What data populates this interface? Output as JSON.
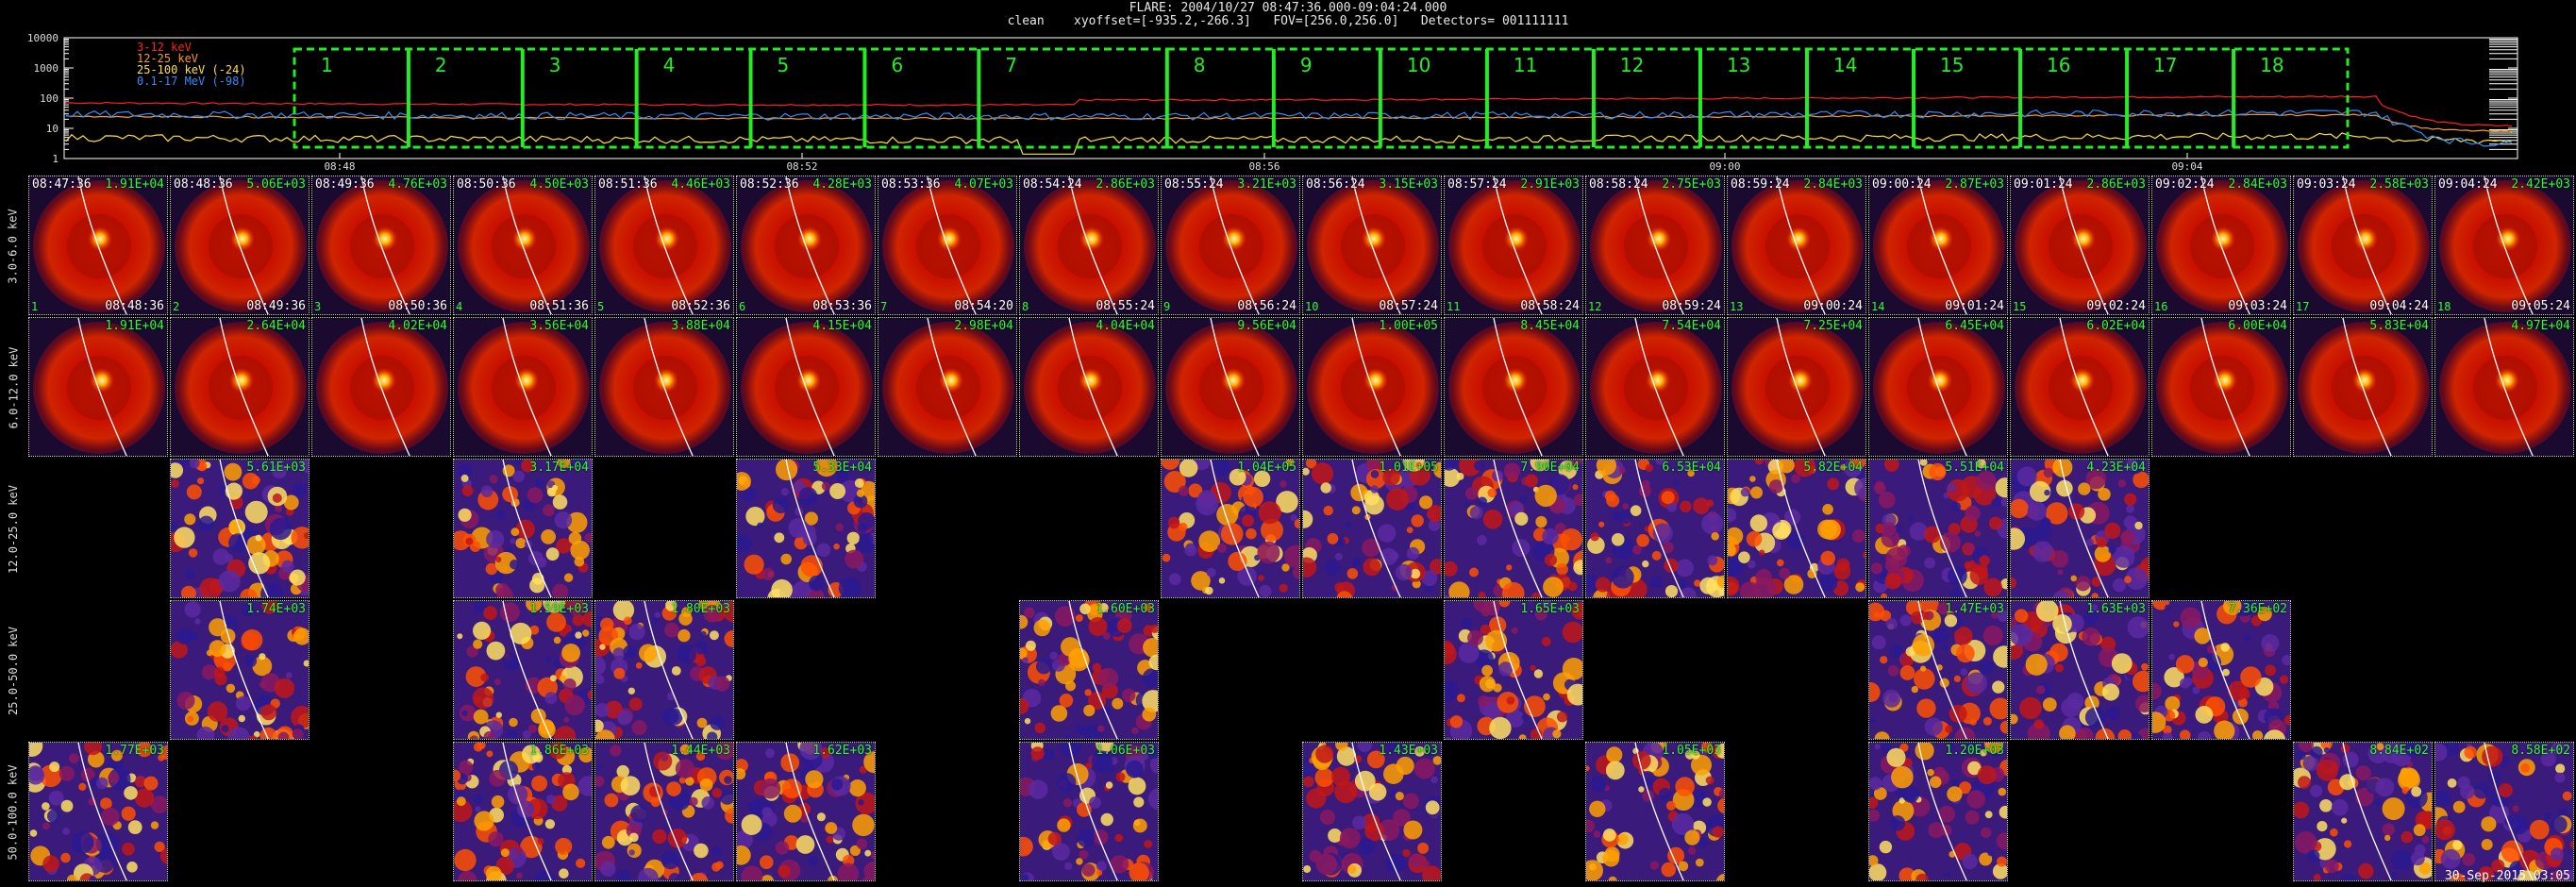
{
  "header": {
    "line1": "FLARE: 2004/10/27 08:47:36.000-09:04:24.000",
    "line2": "clean    xyoffset=[-935.2,-266.3]   FOV=[256.0,256.0]   Detectors= 001111111"
  },
  "lightcurve": {
    "legend": [
      {
        "label": "3-12 keV",
        "color": "#ff2020"
      },
      {
        "label": "12-25 keV",
        "color": "#ff9a1a"
      },
      {
        "label": "25-100 keV (-24)",
        "color": "#ffe23a"
      },
      {
        "label": "0.1-17 MeV (-98)",
        "color": "#2f8cff"
      }
    ],
    "y_ticks": [
      "10000",
      "1000",
      "100",
      "10",
      "1"
    ],
    "x_ticks": [
      "08:48",
      "08:52",
      "08:56",
      "09:00",
      "09:04"
    ],
    "intervals": [
      "1",
      "2",
      "3",
      "4",
      "5",
      "6",
      "7",
      "8",
      "9",
      "10",
      "11",
      "12",
      "13",
      "14",
      "15",
      "16",
      "17",
      "18"
    ],
    "interval_color": "#22ee22",
    "series_levels": [
      {
        "name": "3-12 keV",
        "start": 70,
        "end": 12
      },
      {
        "name": "12-25 keV",
        "start": 25,
        "end": 8
      },
      {
        "name": "25-100 keV (-24)",
        "start": 5,
        "end": 4
      },
      {
        "name": "0.1-17 MeV (-98)",
        "start": 30,
        "end": 3
      }
    ]
  },
  "energy_bands": [
    "3.0-6.0 keV",
    "6.0-12.0 keV",
    "12.0-25.0 keV",
    "25.0-50.0 keV",
    "50.0-100.0 keV"
  ],
  "times": [
    "08:47:36",
    "08:48:36",
    "08:49:36",
    "08:50:36",
    "08:51:36",
    "08:52:36",
    "08:53:36",
    "08:54:24",
    "08:55:24",
    "08:56:24",
    "08:57:24",
    "08:58:24",
    "08:59:24",
    "09:00:24",
    "09:01:24",
    "09:02:24",
    "09:03:24",
    "09:04:24"
  ],
  "end_times": [
    "08:48:36",
    "08:49:36",
    "08:50:36",
    "08:51:36",
    "08:52:36",
    "08:53:36",
    "08:54:20",
    "08:55:24",
    "08:56:24",
    "08:57:24",
    "08:58:24",
    "08:59:24",
    "09:00:24",
    "09:01:24",
    "09:02:24",
    "09:03:24",
    "09:04:24",
    "09:05:24"
  ],
  "rows": [
    {
      "band": "3.0-6.0 keV",
      "style": "smooth",
      "peaks": [
        "1.91E+04",
        "5.06E+03",
        "4.76E+03",
        "4.50E+03",
        "4.46E+03",
        "4.28E+03",
        "4.07E+03",
        "2.86E+03",
        "3.21E+03",
        "3.15E+03",
        "2.91E+03",
        "2.75E+03",
        "2.84E+03",
        "2.87E+03",
        "2.86E+03",
        "2.84E+03",
        "2.58E+03",
        "2.42E+03"
      ]
    },
    {
      "band": "6.0-12.0 keV",
      "style": "smooth",
      "peaks": [
        "1.91E+04",
        "2.64E+04",
        "4.02E+04",
        "3.56E+04",
        "3.88E+04",
        "4.15E+04",
        "2.98E+04",
        "4.04E+04",
        "9.56E+04",
        "1.00E+05",
        "8.45E+04",
        "7.54E+04",
        "7.25E+04",
        "6.45E+04",
        "6.02E+04",
        "6.00E+04",
        "5.83E+04",
        "4.97E+04"
      ]
    },
    {
      "band": "12.0-25.0 keV",
      "style": "noisy",
      "peaks": [
        "",
        "5.61E+03",
        "",
        "3.17E+04",
        "",
        "5.33E+04",
        "",
        "",
        "1.04E+05",
        "1.01E+05",
        "7.90E+04",
        "6.53E+04",
        "5.82E+04",
        "5.51E+04",
        "4.23E+04",
        "",
        "",
        ""
      ]
    },
    {
      "band": "25.0-50.0 keV",
      "style": "noisy",
      "peaks": [
        "",
        "1.74E+03",
        "",
        "1.59E+03",
        "1.80E+03",
        "",
        "",
        "1.60E+03",
        "",
        "",
        "1.65E+03",
        "",
        "",
        "1.47E+03",
        "1.63E+03",
        "7.36E+02",
        "",
        ""
      ]
    },
    {
      "band": "50.0-100.0 keV",
      "style": "noisy",
      "peaks": [
        "1.77E+03",
        "",
        "",
        "1.86E+03",
        "1.44E+03",
        "1.62E+03",
        "",
        "1.06E+03",
        "",
        "1.43E+03",
        "",
        "1.05E+03",
        "",
        "1.20E+03",
        "",
        "",
        "8.84E+02",
        "8.58E+02"
      ]
    }
  ],
  "footer": {
    "stamp": "30-Sep-2015 03:05"
  }
}
